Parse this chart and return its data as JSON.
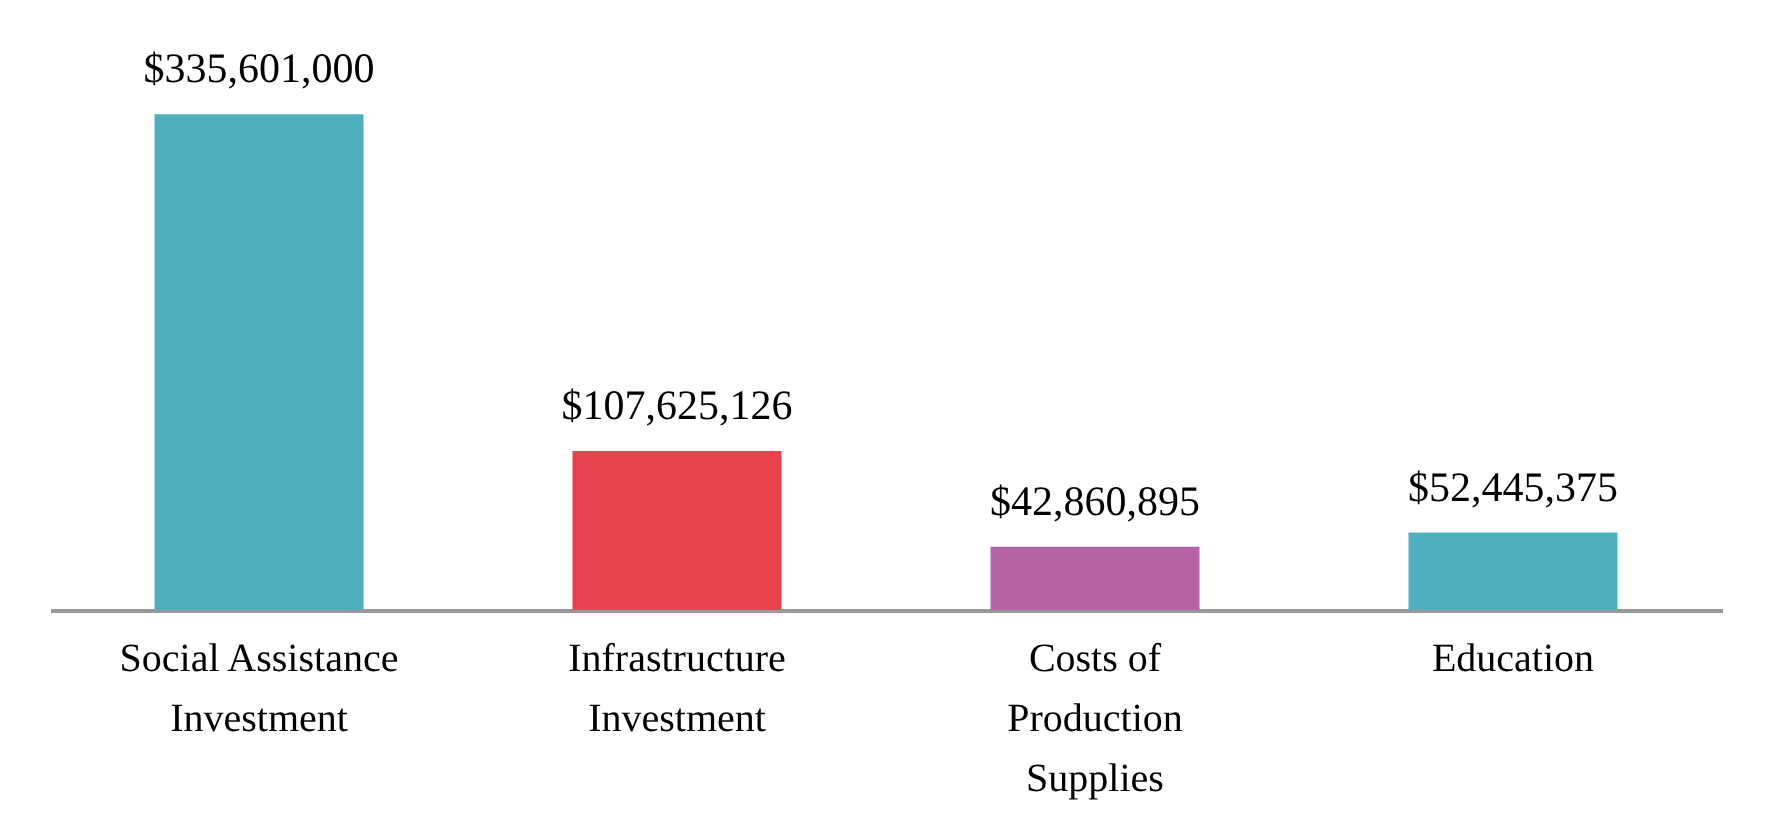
{
  "chart_data": {
    "type": "bar",
    "categories": [
      "Social Assistance Investment",
      "Infrastructure Investment",
      "Costs of Production Supplies",
      "Education"
    ],
    "values": [
      335601000,
      107625126,
      42860895,
      52445375
    ],
    "colors": [
      "#4fafbd",
      "#e8424e",
      "#b565a5",
      "#4fafbd"
    ],
    "value_labels": [
      "$335,601,000",
      "$107,625,126",
      "$42,860,895",
      "$52,445,375"
    ]
  }
}
